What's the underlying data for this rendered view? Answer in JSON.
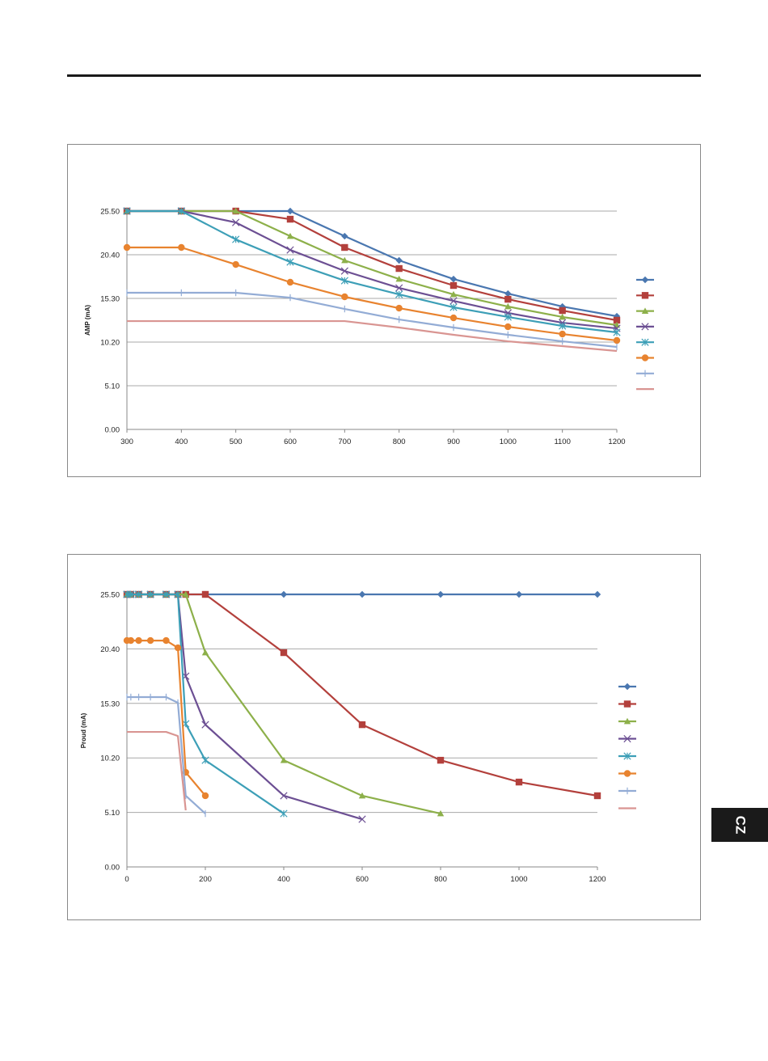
{
  "language_tab": "CZ",
  "series_colors": [
    "#4a77b0",
    "#b3403c",
    "#8db04a",
    "#6c4f93",
    "#3d9fb7",
    "#e8832f",
    "#93acd5",
    "#d99592"
  ],
  "series_markers": [
    "diamond",
    "square",
    "triangle",
    "x",
    "asterisk",
    "circle",
    "plus",
    "none"
  ],
  "chart_data": [
    {
      "type": "line",
      "title": "",
      "xlabel": "",
      "ylabel": "AMP (mA)",
      "xlim": [
        300,
        1200
      ],
      "ylim": [
        0,
        25.5
      ],
      "x_ticks": [
        "300",
        "400",
        "500",
        "600",
        "700",
        "800",
        "900",
        "1000",
        "1100",
        "1200"
      ],
      "y_ticks": [
        "0.00",
        "5.10",
        "10.20",
        "15.30",
        "20.40",
        "25.50"
      ],
      "grid": "horizontal",
      "legend": "right",
      "x": [
        300,
        400,
        500,
        600,
        700,
        800,
        900,
        1000,
        1100,
        1200
      ],
      "series": [
        {
          "name": "",
          "values": [
            25.5,
            25.5,
            25.5,
            25.5,
            22.57,
            19.74,
            17.56,
            15.86,
            14.35,
            13.22
          ]
        },
        {
          "name": "",
          "values": [
            25.5,
            25.5,
            25.5,
            24.55,
            21.25,
            18.79,
            16.81,
            15.2,
            13.88,
            12.75
          ]
        },
        {
          "name": "",
          "values": [
            25.5,
            25.5,
            25.5,
            22.57,
            19.74,
            17.56,
            15.77,
            14.35,
            13.13,
            12.18
          ]
        },
        {
          "name": "",
          "values": [
            25.5,
            25.5,
            24.17,
            20.96,
            18.5,
            16.52,
            15.01,
            13.6,
            12.46,
            11.8
          ]
        },
        {
          "name": "",
          "values": [
            25.5,
            25.5,
            22.19,
            19.55,
            17.37,
            15.77,
            14.26,
            13.13,
            12.09,
            11.33
          ]
        },
        {
          "name": "",
          "values": [
            21.25,
            21.25,
            19.26,
            17.19,
            15.49,
            14.16,
            13.03,
            11.99,
            11.14,
            10.39
          ]
        },
        {
          "name": "",
          "values": [
            15.96,
            15.96,
            15.96,
            15.39,
            14.07,
            12.84,
            11.9,
            11.05,
            10.29,
            9.63
          ]
        },
        {
          "name": "",
          "values": [
            12.65,
            12.65,
            12.65,
            12.65,
            12.65,
            11.9,
            11.05,
            10.29,
            9.73,
            9.16
          ]
        }
      ]
    },
    {
      "type": "line",
      "title": "",
      "xlabel": "",
      "ylabel": "Proud (mA)",
      "xlim": [
        0,
        1200
      ],
      "ylim": [
        0,
        25.5
      ],
      "x_ticks": [
        "0",
        "200",
        "400",
        "600",
        "800",
        "1000",
        "1200"
      ],
      "y_ticks": [
        "0.00",
        "5.10",
        "10.20",
        "15.30",
        "20.40",
        "25.50"
      ],
      "grid": "horizontal",
      "legend": "right",
      "series": [
        {
          "name": "",
          "x": [
            0,
            10,
            30,
            60,
            100,
            130,
            150,
            200,
            400,
            600,
            800,
            1000,
            1200
          ],
          "values": [
            25.5,
            25.5,
            25.5,
            25.5,
            25.5,
            25.5,
            25.5,
            25.5,
            25.5,
            25.5,
            25.5,
            25.5,
            25.5
          ]
        },
        {
          "name": "",
          "x": [
            0,
            10,
            30,
            60,
            100,
            130,
            150,
            200,
            400,
            600,
            800,
            1000,
            1200
          ],
          "values": [
            25.5,
            25.5,
            25.5,
            25.5,
            25.5,
            25.5,
            25.5,
            25.5,
            20.05,
            13.31,
            9.98,
            7.94,
            6.66
          ]
        },
        {
          "name": "",
          "x": [
            0,
            10,
            30,
            60,
            100,
            130,
            150,
            200,
            400,
            600,
            800
          ],
          "values": [
            25.5,
            25.5,
            25.5,
            25.5,
            25.5,
            25.5,
            25.5,
            20.05,
            9.98,
            6.66,
            4.99
          ]
        },
        {
          "name": "",
          "x": [
            0,
            10,
            30,
            60,
            100,
            130,
            150,
            200,
            400,
            600
          ],
          "values": [
            25.5,
            25.5,
            25.5,
            25.5,
            25.5,
            25.5,
            17.85,
            13.31,
            6.66,
            4.46
          ]
        },
        {
          "name": "",
          "x": [
            0,
            10,
            30,
            60,
            100,
            130,
            150,
            200,
            400
          ],
          "values": [
            25.5,
            25.5,
            25.5,
            25.5,
            25.5,
            25.5,
            13.39,
            9.98,
            4.99
          ]
        },
        {
          "name": "",
          "x": [
            0,
            10,
            30,
            60,
            100,
            130,
            150,
            200
          ],
          "values": [
            21.18,
            21.18,
            21.18,
            21.18,
            21.18,
            20.5,
            8.85,
            6.66
          ]
        },
        {
          "name": "",
          "x": [
            0,
            10,
            30,
            60,
            100,
            130,
            150,
            200
          ],
          "values": [
            15.89,
            15.89,
            15.89,
            15.89,
            15.89,
            15.36,
            6.66,
            4.99
          ]
        },
        {
          "name": "",
          "x": [
            0,
            100,
            130,
            150
          ],
          "values": [
            12.63,
            12.63,
            12.25,
            5.3
          ]
        }
      ]
    }
  ]
}
